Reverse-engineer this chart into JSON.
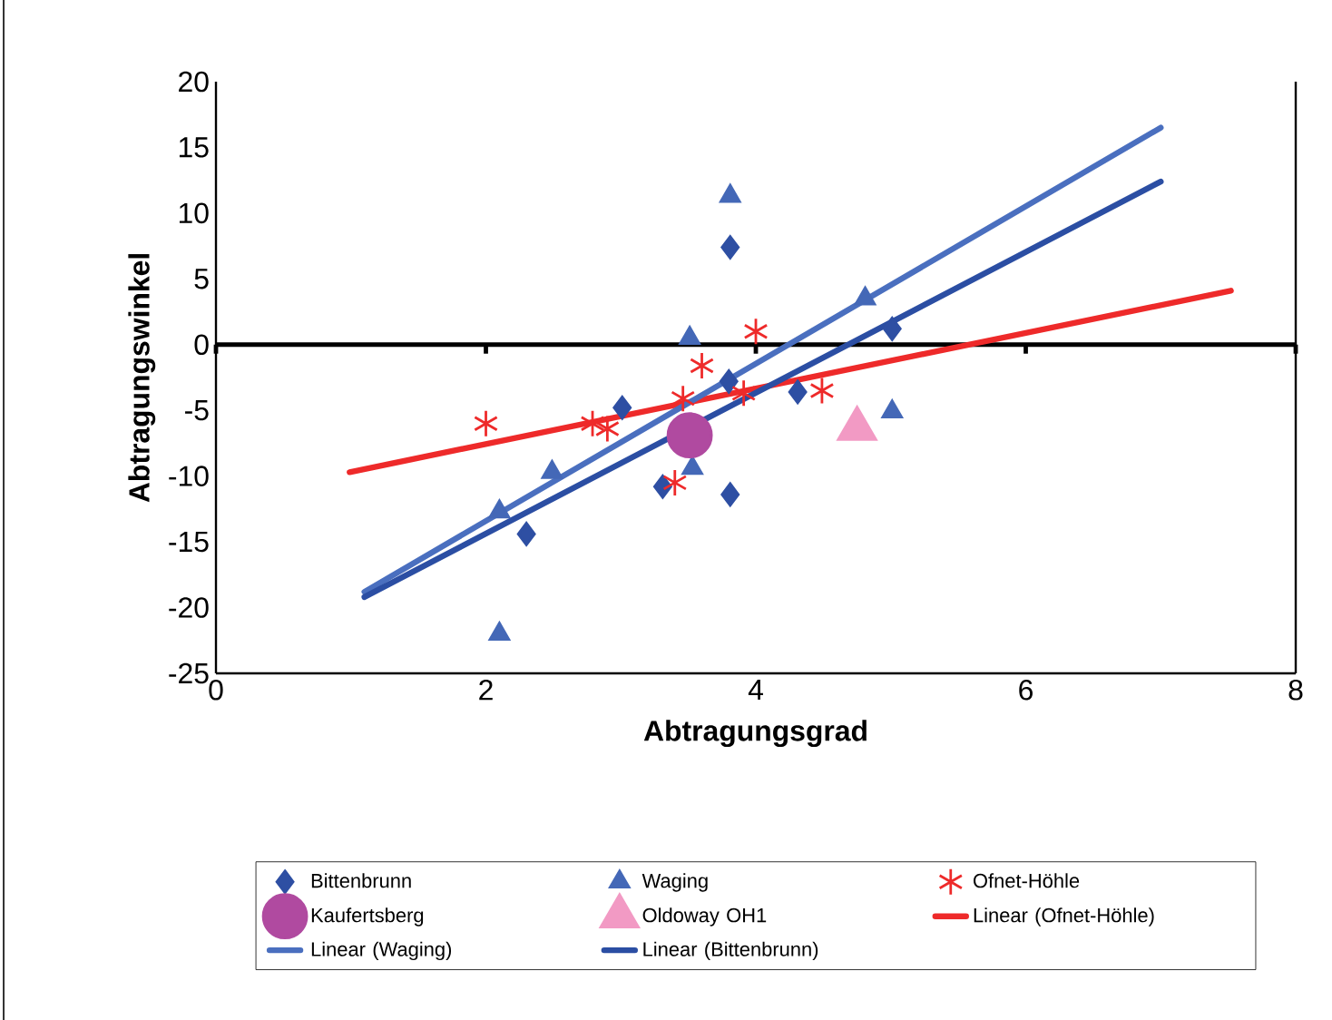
{
  "chart_data": {
    "type": "scatter",
    "xlabel": "Abtragungsgrad",
    "ylabel": "Abtragungswinkel",
    "xlim": [
      0,
      8
    ],
    "ylim": [
      -25,
      20
    ],
    "xticks": [
      0,
      2,
      4,
      6,
      8
    ],
    "yticks": [
      -25,
      -20,
      -15,
      -10,
      -5,
      0,
      5,
      10,
      15,
      20
    ],
    "legend": "bottom",
    "ref_lines": [
      {
        "axis": "y",
        "value": 0,
        "color": "#000000"
      }
    ],
    "series": [
      {
        "name": "Bittenbrunn",
        "marker": "diamond",
        "color": "#2e4fa3",
        "x": [
          3.81,
          5.01,
          4.31,
          3.81,
          3.31,
          2.3,
          3.01,
          3.8
        ],
        "values": [
          7.4,
          1.2,
          -3.6,
          -11.4,
          -10.8,
          -14.4,
          -4.8,
          -2.8
        ]
      },
      {
        "name": "Waging",
        "marker": "triangle",
        "color": "#4468b7",
        "x": [
          3.81,
          3.51,
          4.81,
          5.01,
          2.49,
          2.1,
          2.1,
          3.53
        ],
        "values": [
          11.3,
          0.5,
          3.5,
          -5.1,
          -9.7,
          -12.7,
          -22.0,
          -9.4
        ]
      },
      {
        "name": "Ofnet-Höhle",
        "marker": "cross",
        "color": "#ee2a2a",
        "x": [
          2.0,
          2.79,
          2.9,
          3.6,
          3.46,
          4.0,
          3.91,
          4.49,
          3.4
        ],
        "values": [
          -6.0,
          -6.0,
          -6.4,
          -1.6,
          -4.1,
          1.0,
          -3.7,
          -3.5,
          -10.5
        ]
      },
      {
        "name": "Kaufertsberg",
        "marker": "circle",
        "color": "#b04aa0",
        "x": [
          3.51
        ],
        "values": [
          -6.9
        ]
      },
      {
        "name": "Oldoway OH1",
        "marker": "triangle",
        "color": "#f29ac4",
        "x": [
          4.75
        ],
        "values": [
          -6.4
        ]
      },
      {
        "name": "Linear (Ofnet-Höhle)",
        "type": "line",
        "marker": "none",
        "color": "#ee2a2a",
        "x": [
          0.99,
          7.52
        ],
        "values": [
          -9.7,
          4.1
        ]
      },
      {
        "name": "Linear (Waging)",
        "type": "line",
        "marker": "none",
        "color": "#4a6fbf",
        "x": [
          1.1,
          7.0
        ],
        "values": [
          -18.8,
          16.5
        ]
      },
      {
        "name": "Linear (Bittenbrunn)",
        "type": "line",
        "marker": "none",
        "color": "#2b4ea3",
        "x": [
          1.1,
          7.0
        ],
        "values": [
          -19.2,
          12.4
        ]
      }
    ]
  }
}
